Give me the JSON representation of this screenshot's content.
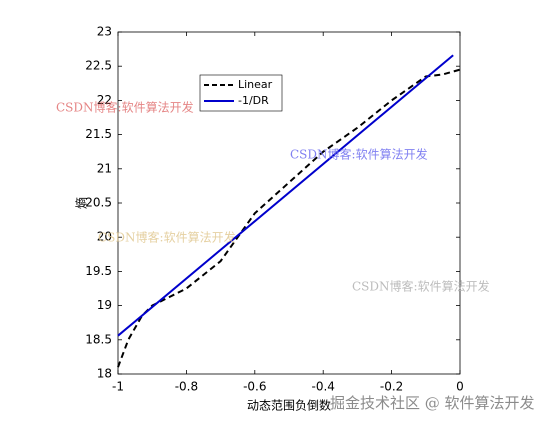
{
  "chart_data": {
    "type": "line",
    "xlabel": "动态范围负倒数",
    "ylabel": "熵",
    "xlim": [
      -1,
      0
    ],
    "ylim": [
      18,
      23
    ],
    "xticks": [
      -1,
      -0.8,
      -0.6,
      -0.4,
      -0.2,
      0
    ],
    "yticks": [
      18,
      18.5,
      19,
      19.5,
      20,
      20.5,
      21,
      21.5,
      22,
      22.5,
      23
    ],
    "legend": "upper-left",
    "series": [
      {
        "name": "Linear",
        "color": "#000000",
        "dash": true,
        "x": [
          -1,
          -0.97,
          -0.93,
          -0.9,
          -0.8,
          -0.7,
          -0.6,
          -0.5,
          -0.4,
          -0.3,
          -0.2,
          -0.1,
          -0.05,
          0
        ],
        "values": [
          18.1,
          18.5,
          18.85,
          19.0,
          19.25,
          19.65,
          20.35,
          20.8,
          21.25,
          21.6,
          22.0,
          22.35,
          22.38,
          22.45
        ]
      },
      {
        "name": "-1/DR",
        "color": "#0000cc",
        "dash": false,
        "x": [
          -1,
          -0.02
        ],
        "values": [
          18.56,
          22.66
        ]
      }
    ],
    "watermarks": [
      "CSDN博客:软件算法开发",
      "CSDN博客:软件算法开发",
      "CSDN博客:软件算法开发",
      "CSDN博客:软件算法开发",
      "掘金技术社区 @ 软件算法开发"
    ]
  }
}
